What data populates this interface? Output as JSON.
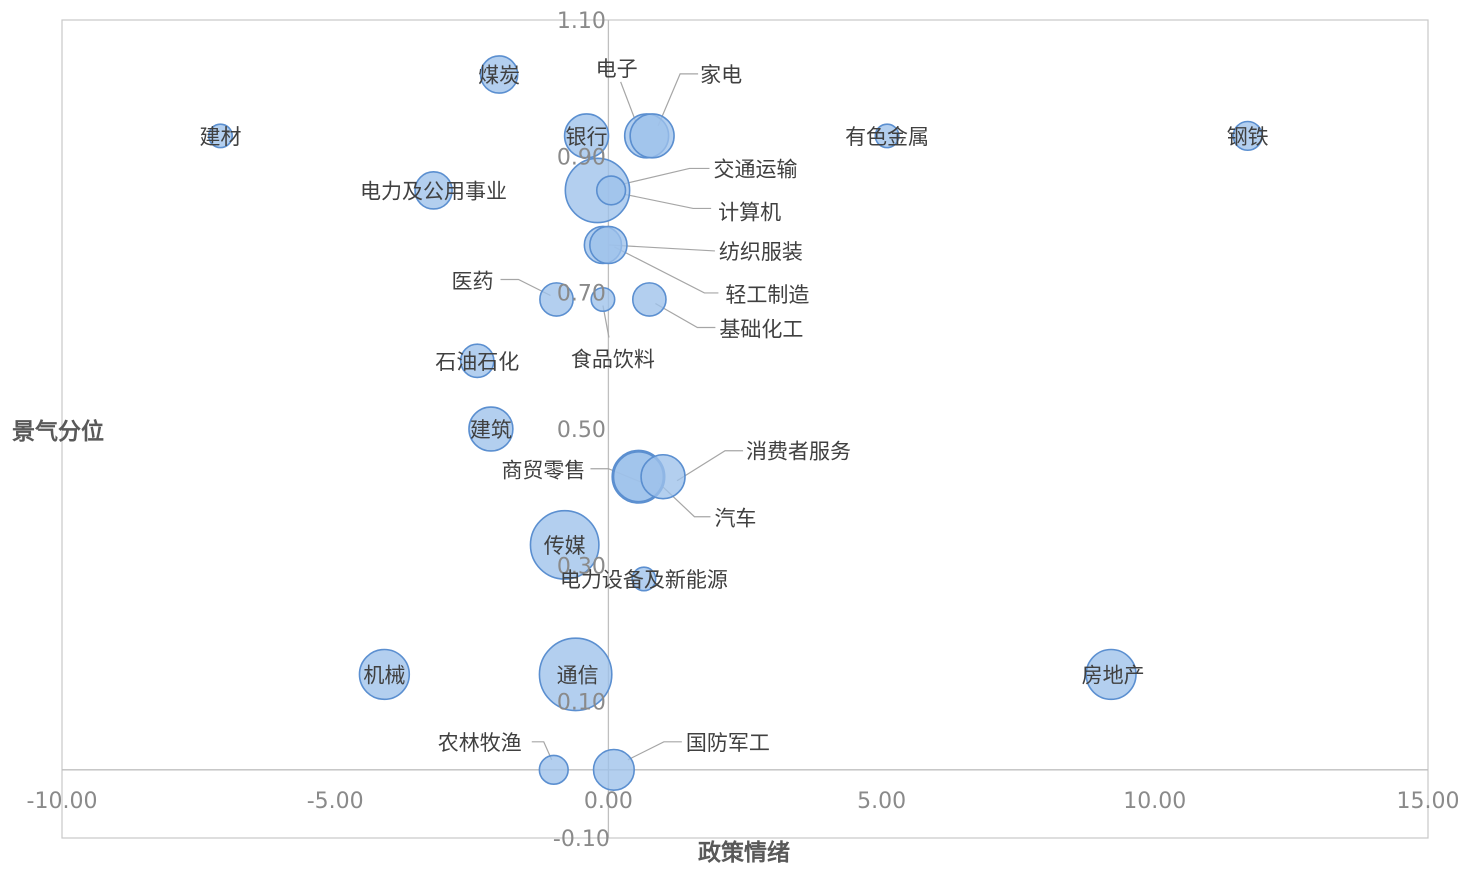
{
  "chart_data": {
    "type": "bubble",
    "title": "",
    "xlabel": "政策情绪",
    "ylabel": "景气分位",
    "xlim": [
      -10,
      15
    ],
    "ylim": [
      -0.1,
      1.1
    ],
    "x_ticks": [
      "-10.00",
      "-5.00",
      "0.00",
      "5.00",
      "10.00",
      "15.00"
    ],
    "y_ticks": [
      "-0.10",
      "0.10",
      "0.30",
      "0.50",
      "0.70",
      "0.90",
      "1.10"
    ],
    "grid": false,
    "legend": "none",
    "colors": {
      "bubble_fill": "#9dc1ea",
      "bubble_stroke": "#5b8fd0",
      "axis": "#bfbfbf"
    },
    "points": [
      {
        "name": "煤炭",
        "x": -2.0,
        "y": 1.02,
        "size": 5
      },
      {
        "name": "电子",
        "x": 0.7,
        "y": 0.93,
        "size": 7
      },
      {
        "name": "家电",
        "x": 0.8,
        "y": 0.93,
        "size": 7
      },
      {
        "name": "建材",
        "x": -7.1,
        "y": 0.93,
        "size": 2
      },
      {
        "name": "银行",
        "x": -0.4,
        "y": 0.93,
        "size": 7
      },
      {
        "name": "有色金属",
        "x": 5.1,
        "y": 0.93,
        "size": 2
      },
      {
        "name": "钢铁",
        "x": 11.7,
        "y": 0.93,
        "size": 3
      },
      {
        "name": "交通运输",
        "x": -0.2,
        "y": 0.85,
        "size": 15
      },
      {
        "name": "计算机",
        "x": 0.05,
        "y": 0.85,
        "size": 3
      },
      {
        "name": "电力及公用事业",
        "x": -3.2,
        "y": 0.85,
        "size": 5
      },
      {
        "name": "纺织服装",
        "x": -0.1,
        "y": 0.77,
        "size": 5
      },
      {
        "name": "轻工制造",
        "x": 0.0,
        "y": 0.77,
        "size": 5
      },
      {
        "name": "医药",
        "x": -0.95,
        "y": 0.69,
        "size": 4
      },
      {
        "name": "食品饮料",
        "x": -0.1,
        "y": 0.69,
        "size": 2
      },
      {
        "name": "基础化工",
        "x": 0.75,
        "y": 0.69,
        "size": 4
      },
      {
        "name": "石油石化",
        "x": -2.4,
        "y": 0.6,
        "size": 4
      },
      {
        "name": "建筑",
        "x": -2.15,
        "y": 0.5,
        "size": 7
      },
      {
        "name": "消费者服务",
        "x": 1.0,
        "y": 0.43,
        "size": 7
      },
      {
        "name": "商贸零售",
        "x": 0.55,
        "y": 0.43,
        "size": 10
      },
      {
        "name": "汽车",
        "x": 0.55,
        "y": 0.43,
        "size": 9
      },
      {
        "name": "传媒",
        "x": -0.8,
        "y": 0.33,
        "size": 17
      },
      {
        "name": "电力设备及新能源",
        "x": 0.65,
        "y": 0.28,
        "size": 2
      },
      {
        "name": "机械",
        "x": -4.1,
        "y": 0.14,
        "size": 9
      },
      {
        "name": "通信",
        "x": -0.6,
        "y": 0.14,
        "size": 19
      },
      {
        "name": "房地产",
        "x": 9.2,
        "y": 0.14,
        "size": 9
      },
      {
        "name": "农林牧渔",
        "x": -1.0,
        "y": 0.0,
        "size": 3
      },
      {
        "name": "国防军工",
        "x": 0.1,
        "y": 0.0,
        "size": 6
      }
    ]
  }
}
